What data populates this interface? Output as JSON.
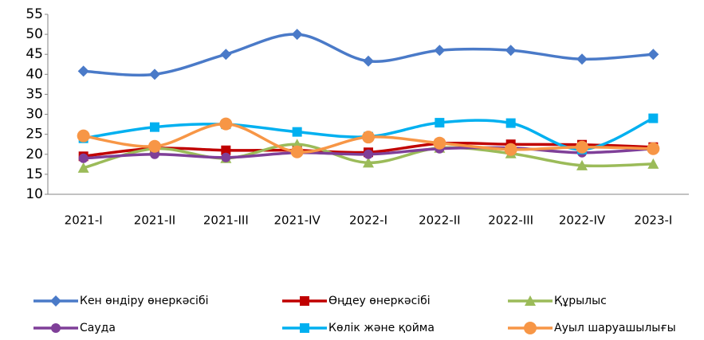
{
  "chart_data": {
    "type": "line",
    "categories": [
      "2021-I",
      "2021-II",
      "2021-III",
      "2021-IV",
      "2022-I",
      "2022-II",
      "2022-III",
      "2022-IV",
      "2023-I"
    ],
    "series": [
      {
        "name": "Кен өндіру өнеркәсібі",
        "color": "#4a7ac8",
        "marker": "diamond",
        "values": [
          40.8,
          40,
          45,
          50,
          43.3,
          46,
          46,
          43.8,
          45
        ]
      },
      {
        "name": "Өңдеу өнеркәсібі",
        "color": "#c00000",
        "marker": "square",
        "values": [
          19.5,
          21.5,
          21,
          21,
          20.5,
          22.7,
          22.5,
          22.4,
          21.8
        ]
      },
      {
        "name": "Құрылыс",
        "color": "#9bbb59",
        "marker": "triangle",
        "values": [
          16.6,
          21.4,
          19,
          22.5,
          17.9,
          21.6,
          20.2,
          17.2,
          17.6
        ]
      },
      {
        "name": "Сауда",
        "color": "#7f3f98",
        "marker": "circle",
        "values": [
          19,
          20,
          19.2,
          20.4,
          20,
          21.4,
          21.6,
          20.4,
          21.4
        ]
      },
      {
        "name": "Көлік және қойма",
        "color": "#00b0f0",
        "marker": "square",
        "values": [
          24,
          26.8,
          27.5,
          25.6,
          24.4,
          27.9,
          27.8,
          21.2,
          29
        ]
      },
      {
        "name": "Ауыл шаруашылығы",
        "color": "#f79646",
        "marker": "bigcircle",
        "values": [
          24.6,
          22,
          27.6,
          20.6,
          24.3,
          22.8,
          21.2,
          21.8,
          21.4
        ]
      }
    ],
    "ylim": [
      10,
      55
    ],
    "yticks": [
      10,
      15,
      20,
      25,
      30,
      35,
      40,
      45,
      50,
      55
    ],
    "grid": false,
    "legend": "bottom"
  }
}
